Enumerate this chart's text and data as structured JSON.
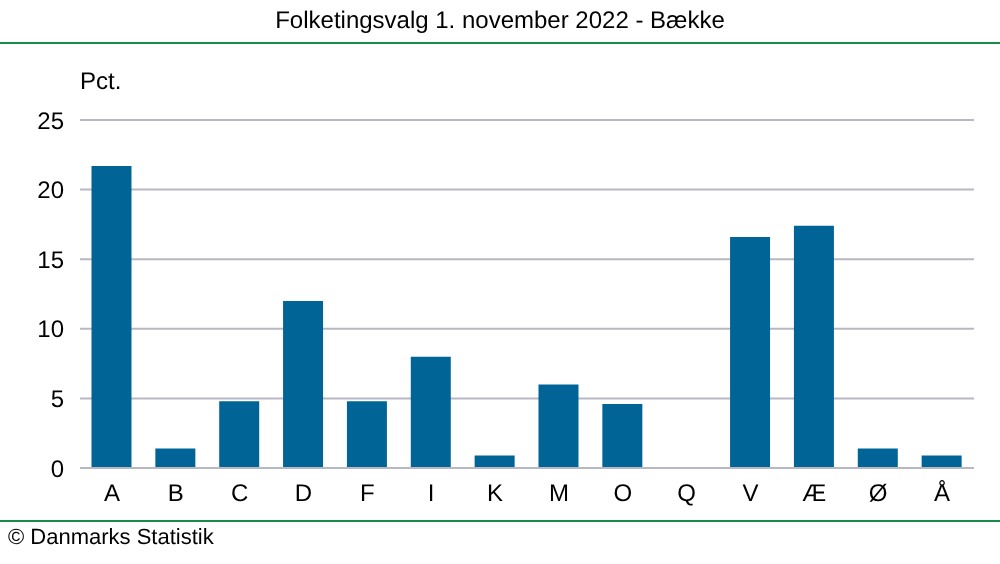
{
  "chart_data": {
    "type": "bar",
    "title": "Folketingsvalg 1. november 2022 - Bække",
    "ylabel": "Pct.",
    "categories": [
      "A",
      "B",
      "C",
      "D",
      "F",
      "I",
      "K",
      "M",
      "O",
      "Q",
      "V",
      "Æ",
      "Ø",
      "Å"
    ],
    "values": [
      21.7,
      1.4,
      4.8,
      12.0,
      4.8,
      8.0,
      0.9,
      6.0,
      4.6,
      0,
      16.6,
      17.4,
      1.4,
      0.9
    ],
    "color": "#006496",
    "ylim": [
      0,
      25
    ],
    "yticks": [
      0,
      5,
      10,
      15,
      20,
      25
    ],
    "grid": "y",
    "annotations": [
      "© Danmarks Statistik"
    ]
  }
}
